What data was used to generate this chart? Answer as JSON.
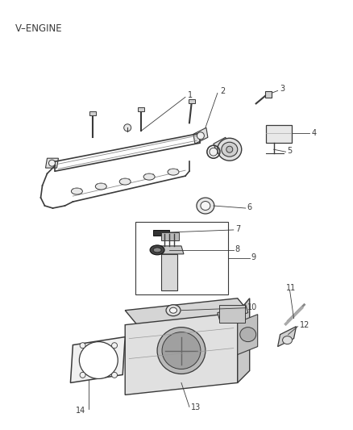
{
  "title": "V–ENGINE",
  "bg": "#ffffff",
  "lc": "#3a3a3a",
  "tc": "#3a3a3a",
  "fig_width": 4.38,
  "fig_height": 5.33,
  "dpi": 100,
  "label_fs": 7.0
}
